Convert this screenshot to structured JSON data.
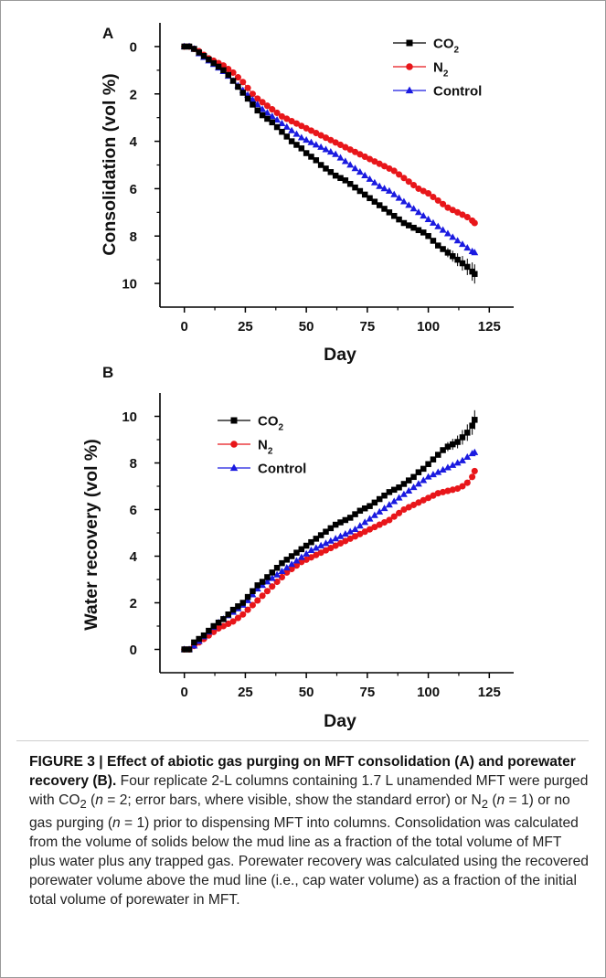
{
  "chart_data": [
    {
      "panel": "A",
      "type": "line",
      "ylabel": "Consolidation (vol %)",
      "xlabel": "Day",
      "xlim": [
        -10,
        135
      ],
      "ylim": [
        -1,
        11
      ],
      "y_inverted": true,
      "xticks": [
        0,
        25,
        50,
        75,
        100,
        125
      ],
      "yticks": [
        0,
        2,
        4,
        6,
        8,
        10
      ],
      "legend_position": "top-right",
      "series": [
        {
          "name": "CO2",
          "color": "#000000",
          "marker": "square",
          "x": [
            0,
            2,
            4,
            6,
            8,
            10,
            12,
            14,
            16,
            18,
            20,
            22,
            24,
            26,
            28,
            30,
            32,
            34,
            36,
            38,
            40,
            42,
            44,
            46,
            48,
            50,
            52,
            54,
            56,
            58,
            60,
            62,
            64,
            66,
            68,
            70,
            72,
            74,
            76,
            78,
            80,
            82,
            84,
            86,
            88,
            90,
            92,
            94,
            96,
            98,
            100,
            102,
            104,
            106,
            108,
            110,
            112,
            114,
            116,
            118,
            119
          ],
          "y": [
            0,
            0,
            0.1,
            0.25,
            0.4,
            0.55,
            0.7,
            0.85,
            1.0,
            1.2,
            1.45,
            1.7,
            1.95,
            2.2,
            2.45,
            2.7,
            2.9,
            3.05,
            3.2,
            3.4,
            3.6,
            3.8,
            4.0,
            4.15,
            4.3,
            4.5,
            4.65,
            4.8,
            5.0,
            5.15,
            5.3,
            5.45,
            5.55,
            5.65,
            5.8,
            5.95,
            6.1,
            6.25,
            6.4,
            6.55,
            6.7,
            6.85,
            7.0,
            7.15,
            7.3,
            7.45,
            7.55,
            7.65,
            7.75,
            7.85,
            8.0,
            8.2,
            8.4,
            8.55,
            8.7,
            8.85,
            9.0,
            9.15,
            9.3,
            9.5,
            9.6
          ],
          "error_bars_visible": true
        },
        {
          "name": "N2",
          "color": "#e8161a",
          "marker": "circle",
          "x": [
            0,
            2,
            4,
            6,
            8,
            10,
            12,
            14,
            16,
            18,
            20,
            22,
            24,
            26,
            28,
            30,
            32,
            34,
            36,
            38,
            40,
            42,
            44,
            46,
            48,
            50,
            52,
            54,
            56,
            58,
            60,
            62,
            64,
            66,
            68,
            70,
            72,
            74,
            76,
            78,
            80,
            82,
            84,
            86,
            88,
            90,
            92,
            94,
            96,
            98,
            100,
            102,
            104,
            106,
            108,
            110,
            112,
            114,
            116,
            118,
            119
          ],
          "y": [
            0,
            0,
            0.1,
            0.2,
            0.35,
            0.5,
            0.6,
            0.7,
            0.8,
            0.95,
            1.1,
            1.3,
            1.5,
            1.75,
            2.0,
            2.2,
            2.35,
            2.5,
            2.65,
            2.8,
            2.95,
            3.05,
            3.15,
            3.25,
            3.35,
            3.45,
            3.55,
            3.65,
            3.75,
            3.85,
            3.95,
            4.05,
            4.15,
            4.25,
            4.35,
            4.45,
            4.55,
            4.65,
            4.75,
            4.85,
            4.95,
            5.05,
            5.15,
            5.25,
            5.4,
            5.55,
            5.7,
            5.85,
            6.0,
            6.1,
            6.2,
            6.35,
            6.5,
            6.65,
            6.8,
            6.9,
            7.0,
            7.1,
            7.2,
            7.35,
            7.45
          ]
        },
        {
          "name": "Control",
          "color": "#1a1ae0",
          "marker": "triangle",
          "x": [
            0,
            2,
            4,
            6,
            8,
            10,
            12,
            14,
            16,
            18,
            20,
            22,
            24,
            26,
            28,
            30,
            32,
            34,
            36,
            38,
            40,
            42,
            44,
            46,
            48,
            50,
            52,
            54,
            56,
            58,
            60,
            62,
            64,
            66,
            68,
            70,
            72,
            74,
            76,
            78,
            80,
            82,
            84,
            86,
            88,
            90,
            92,
            94,
            96,
            98,
            100,
            102,
            104,
            106,
            108,
            110,
            112,
            114,
            116,
            118,
            119
          ],
          "y": [
            0,
            0,
            0.1,
            0.3,
            0.45,
            0.6,
            0.75,
            0.9,
            1.05,
            1.25,
            1.45,
            1.65,
            1.85,
            2.05,
            2.25,
            2.45,
            2.65,
            2.8,
            2.95,
            3.1,
            3.25,
            3.4,
            3.55,
            3.7,
            3.85,
            3.95,
            4.05,
            4.15,
            4.25,
            4.35,
            4.45,
            4.55,
            4.7,
            4.85,
            5.0,
            5.15,
            5.3,
            5.45,
            5.6,
            5.75,
            5.9,
            6.0,
            6.1,
            6.25,
            6.4,
            6.55,
            6.7,
            6.85,
            7.0,
            7.15,
            7.3,
            7.45,
            7.6,
            7.75,
            7.9,
            8.05,
            8.2,
            8.35,
            8.5,
            8.65,
            8.7
          ]
        }
      ]
    },
    {
      "panel": "B",
      "type": "line",
      "ylabel": "Water recovery (vol %)",
      "xlabel": "Day",
      "xlim": [
        -10,
        135
      ],
      "ylim": [
        -1,
        11
      ],
      "xticks": [
        0,
        25,
        50,
        75,
        100,
        125
      ],
      "yticks": [
        0,
        2,
        4,
        6,
        8,
        10
      ],
      "legend_position": "top-left",
      "series": [
        {
          "name": "CO2",
          "color": "#000000",
          "marker": "square",
          "x": [
            0,
            2,
            4,
            6,
            8,
            10,
            12,
            14,
            16,
            18,
            20,
            22,
            24,
            26,
            28,
            30,
            32,
            34,
            36,
            38,
            40,
            42,
            44,
            46,
            48,
            50,
            52,
            54,
            56,
            58,
            60,
            62,
            64,
            66,
            68,
            70,
            72,
            74,
            76,
            78,
            80,
            82,
            84,
            86,
            88,
            90,
            92,
            94,
            96,
            98,
            100,
            102,
            104,
            106,
            108,
            110,
            112,
            114,
            116,
            118,
            119
          ],
          "y": [
            0,
            0,
            0.3,
            0.45,
            0.6,
            0.8,
            1.0,
            1.15,
            1.3,
            1.5,
            1.7,
            1.85,
            2.0,
            2.25,
            2.5,
            2.75,
            2.9,
            3.1,
            3.3,
            3.5,
            3.7,
            3.85,
            4.0,
            4.15,
            4.3,
            4.45,
            4.6,
            4.75,
            4.9,
            5.05,
            5.2,
            5.35,
            5.45,
            5.55,
            5.65,
            5.8,
            5.95,
            6.05,
            6.15,
            6.3,
            6.45,
            6.6,
            6.75,
            6.85,
            6.95,
            7.1,
            7.25,
            7.4,
            7.6,
            7.75,
            7.95,
            8.15,
            8.35,
            8.55,
            8.7,
            8.8,
            8.9,
            9.1,
            9.3,
            9.6,
            9.85
          ],
          "error_bars_visible": true
        },
        {
          "name": "N2",
          "color": "#e8161a",
          "marker": "circle",
          "x": [
            0,
            2,
            4,
            6,
            8,
            10,
            12,
            14,
            16,
            18,
            20,
            22,
            24,
            26,
            28,
            30,
            32,
            34,
            36,
            38,
            40,
            42,
            44,
            46,
            48,
            50,
            52,
            54,
            56,
            58,
            60,
            62,
            64,
            66,
            68,
            70,
            72,
            74,
            76,
            78,
            80,
            82,
            84,
            86,
            88,
            90,
            92,
            94,
            96,
            98,
            100,
            102,
            104,
            106,
            108,
            110,
            112,
            114,
            116,
            118,
            119
          ],
          "y": [
            0,
            0,
            0.15,
            0.3,
            0.45,
            0.6,
            0.75,
            0.9,
            1.0,
            1.1,
            1.2,
            1.35,
            1.5,
            1.7,
            1.9,
            2.1,
            2.3,
            2.5,
            2.7,
            2.9,
            3.1,
            3.3,
            3.45,
            3.6,
            3.75,
            3.85,
            3.95,
            4.05,
            4.15,
            4.25,
            4.35,
            4.45,
            4.55,
            4.65,
            4.75,
            4.85,
            4.95,
            5.05,
            5.15,
            5.25,
            5.35,
            5.45,
            5.55,
            5.7,
            5.85,
            6.0,
            6.1,
            6.2,
            6.3,
            6.4,
            6.5,
            6.6,
            6.7,
            6.75,
            6.8,
            6.85,
            6.9,
            7.0,
            7.15,
            7.4,
            7.65
          ]
        },
        {
          "name": "Control",
          "color": "#1a1ae0",
          "marker": "triangle",
          "x": [
            0,
            2,
            4,
            6,
            8,
            10,
            12,
            14,
            16,
            18,
            20,
            22,
            24,
            26,
            28,
            30,
            32,
            34,
            36,
            38,
            40,
            42,
            44,
            46,
            48,
            50,
            52,
            54,
            56,
            58,
            60,
            62,
            64,
            66,
            68,
            70,
            72,
            74,
            76,
            78,
            80,
            82,
            84,
            86,
            88,
            90,
            92,
            94,
            96,
            98,
            100,
            102,
            104,
            106,
            108,
            110,
            112,
            114,
            116,
            118,
            119
          ],
          "y": [
            0,
            0,
            0.15,
            0.35,
            0.55,
            0.75,
            0.95,
            1.15,
            1.3,
            1.45,
            1.6,
            1.75,
            1.9,
            2.1,
            2.35,
            2.6,
            2.75,
            2.9,
            3.05,
            3.2,
            3.35,
            3.5,
            3.65,
            3.8,
            3.95,
            4.1,
            4.25,
            4.35,
            4.45,
            4.55,
            4.65,
            4.75,
            4.85,
            4.95,
            5.05,
            5.15,
            5.3,
            5.45,
            5.6,
            5.75,
            5.9,
            6.05,
            6.2,
            6.35,
            6.5,
            6.65,
            6.8,
            6.95,
            7.1,
            7.25,
            7.4,
            7.5,
            7.6,
            7.7,
            7.8,
            7.9,
            8.0,
            8.1,
            8.25,
            8.4,
            8.45
          ]
        }
      ]
    }
  ],
  "legend_labels": {
    "co2_base": "CO",
    "co2_sub": "2",
    "n2_base": "N",
    "n2_sub": "2",
    "control": "Control"
  },
  "caption": {
    "figure_label": "FIGURE 3 | Effect of abiotic gas purging on MFT consolidation (A) and porewater recovery (B).",
    "t1": " Four replicate 2-L columns containing 1.7 L unamended MFT were purged with CO",
    "sub1": "2",
    "t2": " (",
    "n1": "n",
    "t3": " = 2; error bars, where visible, show the standard error) or N",
    "sub2": "2",
    "t4": " (",
    "n2": "n",
    "t5": " = 1) or no gas purging (",
    "n3": "n",
    "t6": " = 1) prior to dispensing MFT into columns. Consolidation was calculated from the volume of solids below the mud line as a fraction of the total volume of MFT plus water plus any trapped gas. Porewater recovery was calculated using the recovered porewater volume above the mud line (i.e., cap water volume) as a fraction of the initial total volume of porewater in MFT."
  }
}
